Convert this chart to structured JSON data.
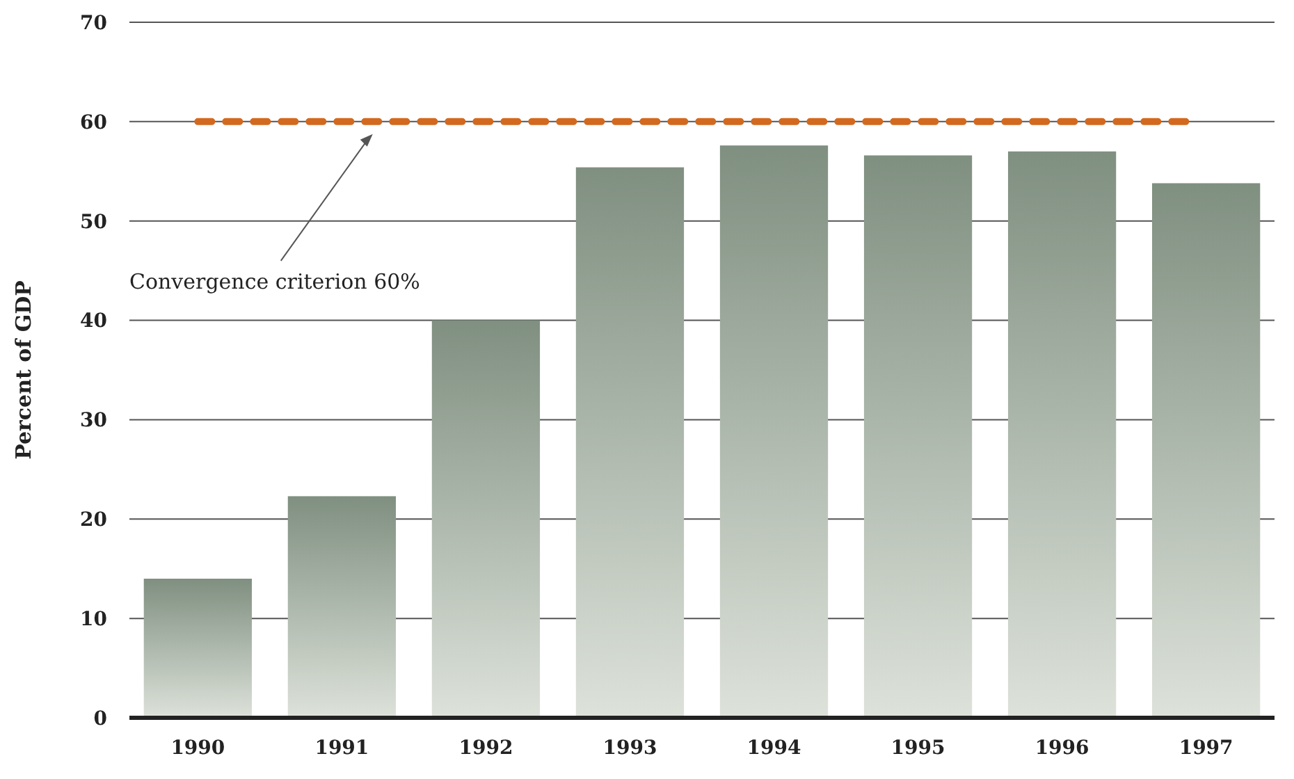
{
  "chart_data": {
    "type": "bar",
    "ylabel": "Percent of GDP",
    "categories": [
      "1990",
      "1991",
      "1992",
      "1993",
      "1994",
      "1995",
      "1996",
      "1997"
    ],
    "values": [
      14.0,
      22.3,
      40.0,
      55.4,
      57.6,
      56.6,
      57.0,
      53.8
    ],
    "color": "#7f8f80",
    "ylim": [
      0,
      70
    ],
    "yticks": [
      0,
      10,
      20,
      30,
      40,
      50,
      60,
      70
    ],
    "grid": "y",
    "ref_lines": [
      {
        "axis": "y",
        "value": 60,
        "color": "#d2691e",
        "line_style": "dashed"
      }
    ],
    "annotations": [
      "Convergence criterion 60%"
    ]
  }
}
